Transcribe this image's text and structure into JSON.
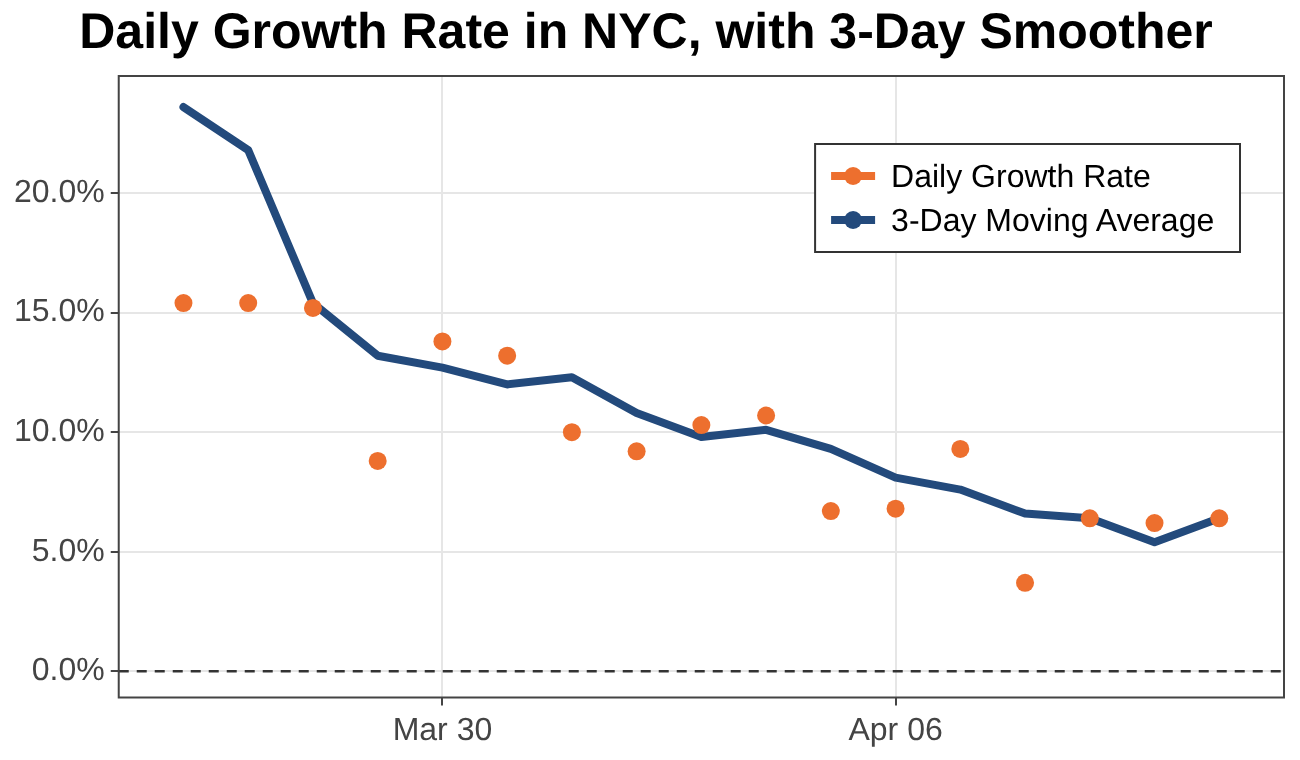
{
  "chart_data": {
    "type": "line",
    "title": "Daily Growth Rate in NYC, with 3-Day Smoother",
    "x": [
      "--03-26",
      "--03-27",
      "--03-28",
      "--03-29",
      "--03-30",
      "--03-31",
      "--04-01",
      "--04-02",
      "--04-03",
      "--04-04",
      "--04-05",
      "--04-06",
      "--04-07",
      "--04-08",
      "--04-09",
      "--04-10",
      "--04-11"
    ],
    "series": [
      {
        "name": "Daily Growth Rate",
        "type": "scatter",
        "marker": "circle",
        "color": "#ed6f2e",
        "values": [
          15.4,
          15.4,
          15.2,
          8.8,
          13.8,
          13.2,
          10.0,
          9.2,
          10.3,
          10.7,
          6.7,
          6.8,
          9.3,
          3.7,
          6.4,
          6.2,
          6.4
        ]
      },
      {
        "name": "3-Day Moving Average",
        "marker": "none",
        "color": "#234a7c",
        "values": [
          23.6,
          21.8,
          15.4,
          13.2,
          12.7,
          12.0,
          12.3,
          10.8,
          9.8,
          10.1,
          9.3,
          8.1,
          7.6,
          6.6,
          6.4,
          5.4,
          6.4
        ]
      }
    ],
    "xlim": [
      "--03-25",
      "--04-12"
    ],
    "xticks": [
      {
        "value": "--03-30",
        "label": "Mar 30"
      },
      {
        "value": "--04-06",
        "label": "Apr 06"
      }
    ],
    "ylim": [
      -1.1,
      24.9
    ],
    "yticks": [
      {
        "value": 0,
        "label": "0.0%"
      },
      {
        "value": 5,
        "label": "5.0%"
      },
      {
        "value": 10,
        "label": "10.0%"
      },
      {
        "value": 15,
        "label": "15.0%"
      },
      {
        "value": 20,
        "label": "20.0%"
      }
    ],
    "ref_lines": [
      {
        "axis": "y",
        "value": 0,
        "line_style": "dashed",
        "color": "#333333"
      }
    ],
    "grid": true,
    "legend": "top right",
    "line_style": "solid"
  }
}
